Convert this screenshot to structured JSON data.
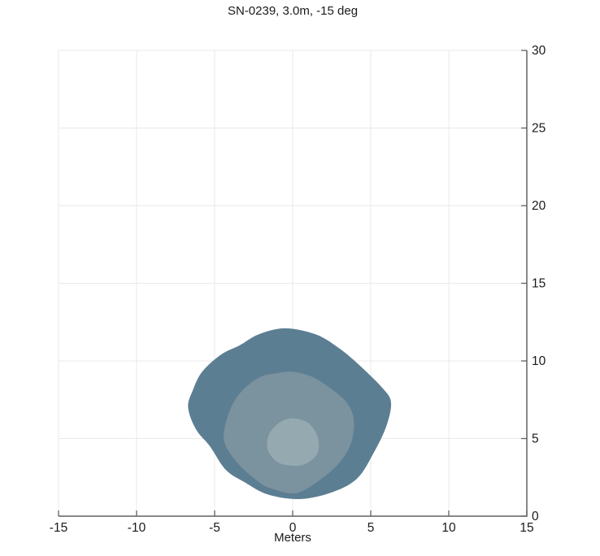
{
  "chart_data": {
    "type": "contour",
    "title": "SN-0239, 3.0m, -15 deg",
    "xlabel": "Meters",
    "ylabel": "",
    "xlim": [
      -15,
      15
    ],
    "ylim": [
      0,
      30
    ],
    "x_ticks": [
      -15,
      -10,
      -5,
      0,
      5,
      10,
      15
    ],
    "y_ticks": [
      0,
      5,
      10,
      15,
      20,
      25,
      30
    ],
    "y_axis_side": "right",
    "grid": true,
    "grid_color": "#e9e9e9",
    "axis_color": "#606060",
    "text_color": "#1a1a1a",
    "background_color": "#ffffff",
    "contours": [
      {
        "name": "outer-level",
        "color": "#5c7e92",
        "points": [
          [
            -0.5,
            12.1
          ],
          [
            1.5,
            11.7
          ],
          [
            3.0,
            10.8
          ],
          [
            4.3,
            9.7
          ],
          [
            5.8,
            8.2
          ],
          [
            6.3,
            7.3
          ],
          [
            6.0,
            5.8
          ],
          [
            5.2,
            4.1
          ],
          [
            4.1,
            2.4
          ],
          [
            2.4,
            1.5
          ],
          [
            0.4,
            1.1
          ],
          [
            -1.6,
            1.4
          ],
          [
            -3.1,
            2.2
          ],
          [
            -4.3,
            3.0
          ],
          [
            -5.3,
            4.5
          ],
          [
            -6.2,
            5.6
          ],
          [
            -6.7,
            7.0
          ],
          [
            -6.4,
            8.1
          ],
          [
            -5.8,
            9.3
          ],
          [
            -4.6,
            10.4
          ],
          [
            -3.4,
            11.0
          ],
          [
            -2.2,
            11.7
          ]
        ]
      },
      {
        "name": "middle-level",
        "color": "#7b929f",
        "points": [
          [
            0.0,
            9.3
          ],
          [
            1.2,
            9.0
          ],
          [
            2.2,
            8.4
          ],
          [
            3.4,
            7.4
          ],
          [
            3.9,
            6.3
          ],
          [
            3.8,
            4.9
          ],
          [
            3.2,
            3.7
          ],
          [
            2.1,
            2.6
          ],
          [
            0.3,
            1.5
          ],
          [
            -1.4,
            1.8
          ],
          [
            -2.3,
            2.3
          ],
          [
            -3.6,
            3.5
          ],
          [
            -4.4,
            4.9
          ],
          [
            -4.1,
            6.6
          ],
          [
            -3.4,
            7.9
          ],
          [
            -2.2,
            8.9
          ],
          [
            -1.1,
            9.2
          ]
        ]
      },
      {
        "name": "inner-level",
        "color": "#95a9b1",
        "points": [
          [
            0.0,
            6.3
          ],
          [
            1.0,
            6.0
          ],
          [
            1.6,
            5.1
          ],
          [
            1.6,
            4.1
          ],
          [
            0.9,
            3.4
          ],
          [
            0.0,
            3.25
          ],
          [
            -1.0,
            3.5
          ],
          [
            -1.6,
            4.3
          ],
          [
            -1.5,
            5.3
          ],
          [
            -0.8,
            6.05
          ]
        ]
      }
    ]
  }
}
